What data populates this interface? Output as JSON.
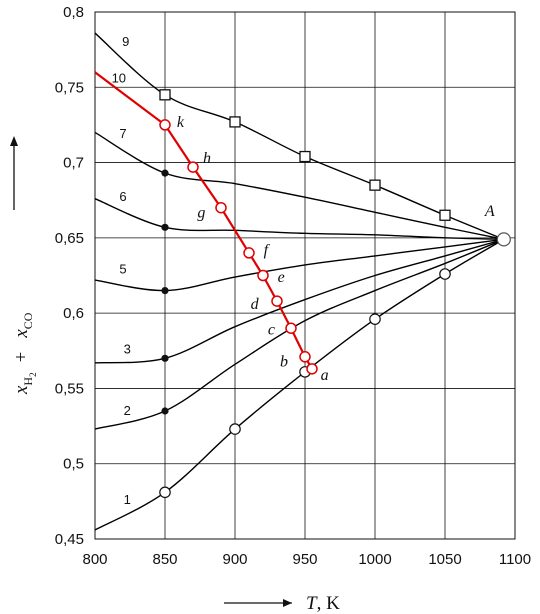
{
  "chart_data": {
    "type": "line",
    "xlim": [
      800,
      1100
    ],
    "ylim": [
      0.45,
      0.8
    ],
    "x_ticks": [
      "800",
      "850",
      "900",
      "950",
      "1000",
      "1050",
      "1100"
    ],
    "y_ticks": [
      "0,45",
      "0,5",
      "0,55",
      "0,6",
      "0,65",
      "0,7",
      "0,75",
      "0,8"
    ],
    "grid": true,
    "xlabel": {
      "italic": "T",
      "rest": ", K"
    },
    "ylabel": {
      "x": "x",
      "h": "H",
      "two": "2",
      "plus": "+",
      "co": "CO"
    },
    "series": [
      {
        "name": "1",
        "color": "#000000",
        "marker": "open-circle",
        "x": [
          800,
          850,
          900,
          950,
          1000,
          1050,
          1092
        ],
        "y": [
          0.456,
          0.481,
          0.523,
          0.561,
          0.596,
          0.626,
          0.649
        ],
        "marked": [
          1,
          2,
          3,
          4,
          5
        ]
      },
      {
        "name": "2",
        "color": "#000000",
        "marker": "filled-circle",
        "x": [
          800,
          850,
          900,
          950,
          1000,
          1050,
          1092
        ],
        "y": [
          0.523,
          0.535,
          0.566,
          0.595,
          0.615,
          0.633,
          0.649
        ],
        "marked": [
          1
        ]
      },
      {
        "name": "3",
        "color": "#000000",
        "marker": "filled-circle",
        "x": [
          800,
          850,
          900,
          950,
          1000,
          1050,
          1092
        ],
        "y": [
          0.567,
          0.57,
          0.591,
          0.609,
          0.625,
          0.638,
          0.649
        ],
        "marked": [
          1
        ]
      },
      {
        "name": "5",
        "color": "#000000",
        "marker": "filled-circle",
        "x": [
          800,
          850,
          900,
          950,
          1000,
          1050,
          1092
        ],
        "y": [
          0.622,
          0.615,
          0.624,
          0.632,
          0.638,
          0.644,
          0.649
        ],
        "marked": [
          1
        ]
      },
      {
        "name": "6",
        "color": "#000000",
        "marker": "filled-circle",
        "x": [
          800,
          850,
          900,
          950,
          1000,
          1050,
          1092
        ],
        "y": [
          0.676,
          0.657,
          0.655,
          0.653,
          0.652,
          0.65,
          0.649
        ],
        "marked": [
          1
        ]
      },
      {
        "name": "7",
        "color": "#000000",
        "marker": "filled-circle",
        "x": [
          800,
          850,
          900,
          950,
          1000,
          1050,
          1092
        ],
        "y": [
          0.72,
          0.693,
          0.686,
          0.677,
          0.667,
          0.657,
          0.649
        ],
        "marked": [
          1
        ]
      },
      {
        "name": "9",
        "color": "#000000",
        "marker": "open-square",
        "x": [
          800,
          850,
          900,
          950,
          1000,
          1050,
          1092
        ],
        "y": [
          0.786,
          0.745,
          0.727,
          0.704,
          0.685,
          0.665,
          0.649
        ],
        "marked": [
          1,
          2,
          3,
          4,
          5
        ]
      },
      {
        "name": "10",
        "color": "#e00000",
        "marker": "open-circle-red",
        "x": [
          800,
          850,
          870,
          890,
          910,
          920,
          930,
          940,
          950,
          955
        ],
        "y": [
          0.76,
          0.725,
          0.697,
          0.67,
          0.64,
          0.625,
          0.608,
          0.59,
          0.571,
          0.563
        ],
        "marked": [
          1,
          2,
          3,
          4,
          5,
          6,
          7,
          8,
          9
        ]
      }
    ],
    "curve_labels": [
      {
        "text": "1",
        "series": "1",
        "x": 823,
        "y": 0.476
      },
      {
        "text": "2",
        "series": "2",
        "x": 823,
        "y": 0.535
      },
      {
        "text": "3",
        "series": "3",
        "x": 823,
        "y": 0.576
      },
      {
        "text": "5",
        "series": "5",
        "x": 820,
        "y": 0.629
      },
      {
        "text": "6",
        "series": "6",
        "x": 820,
        "y": 0.677
      },
      {
        "text": "7",
        "series": "7",
        "x": 820,
        "y": 0.719
      },
      {
        "text": "9",
        "series": "9",
        "x": 822,
        "y": 0.78
      },
      {
        "text": "10",
        "series": "10",
        "x": 817,
        "y": 0.756
      }
    ],
    "point_labels": [
      {
        "text": "k",
        "x": 861,
        "y": 0.727
      },
      {
        "text": "h",
        "x": 880,
        "y": 0.703
      },
      {
        "text": "g",
        "x": 876,
        "y": 0.667
      },
      {
        "text": "f",
        "x": 922,
        "y": 0.642
      },
      {
        "text": "e",
        "x": 933,
        "y": 0.624
      },
      {
        "text": "d",
        "x": 914,
        "y": 0.606
      },
      {
        "text": "c",
        "x": 926,
        "y": 0.589
      },
      {
        "text": "b",
        "x": 935,
        "y": 0.568
      },
      {
        "text": "a",
        "x": 964,
        "y": 0.559
      },
      {
        "text": "A",
        "x": 1082,
        "y": 0.668
      }
    ],
    "point_A": {
      "x": 1092,
      "y": 0.649
    }
  }
}
